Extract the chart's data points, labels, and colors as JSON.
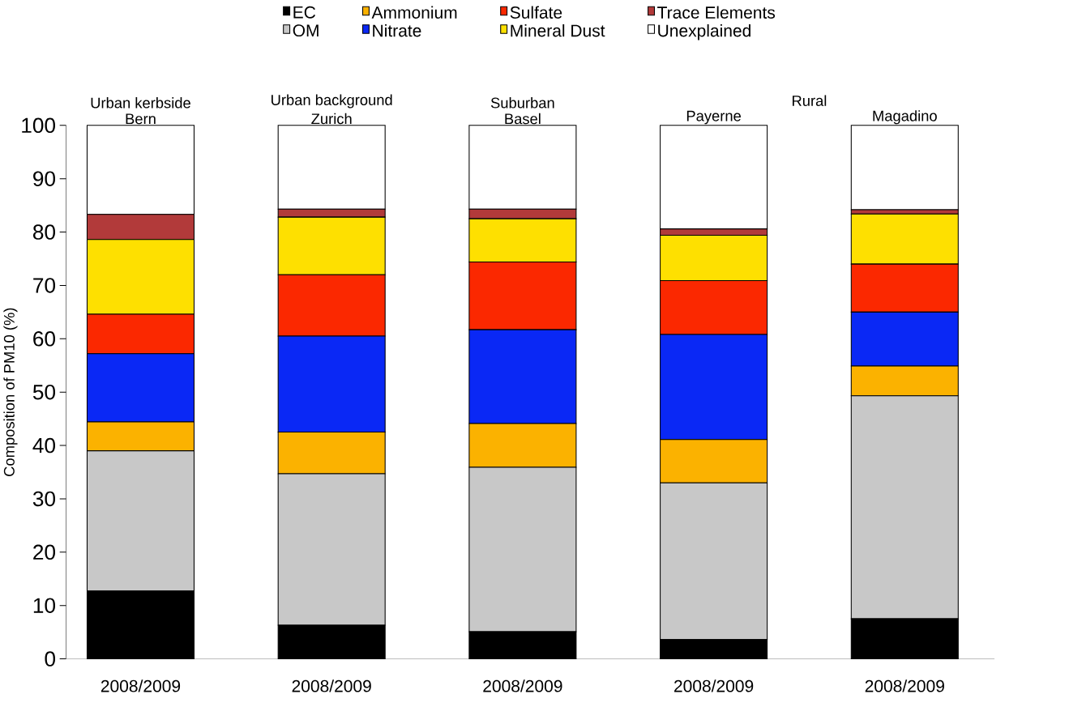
{
  "chart_data": {
    "type": "bar",
    "stacked": true,
    "ylabel": "Composition of PM10 (%)",
    "categories": [
      "Bern",
      "Zurich",
      "Basel",
      "Payerne",
      "Magadino"
    ],
    "series": [
      {
        "name": "EC",
        "color": "#000000",
        "values": [
          12.7,
          6.3,
          5.1,
          3.6,
          7.5
        ]
      },
      {
        "name": "OM",
        "color": "#c8c8c8",
        "values": [
          26.3,
          28.4,
          30.8,
          29.4,
          41.8
        ]
      },
      {
        "name": "Ammonium",
        "color": "#fbb200",
        "values": [
          5.4,
          7.8,
          8.2,
          8.1,
          5.6
        ]
      },
      {
        "name": "Nitrate",
        "color": "#0a28f5",
        "values": [
          12.8,
          18.0,
          17.6,
          19.7,
          10.1
        ]
      },
      {
        "name": "Sulfate",
        "color": "#fb2800",
        "values": [
          7.4,
          11.5,
          12.7,
          10.1,
          9.0
        ]
      },
      {
        "name": "Mineral Dust",
        "color": "#fee000",
        "values": [
          14.0,
          10.8,
          8.1,
          8.5,
          9.4
        ]
      },
      {
        "name": "Trace Elements",
        "color": "#b23a3a",
        "values": [
          4.7,
          1.5,
          1.8,
          1.2,
          0.8
        ]
      },
      {
        "name": "Unexplained",
        "color": "#ffffff",
        "values": [
          16.7,
          15.7,
          15.7,
          19.4,
          15.8
        ]
      }
    ],
    "ylim": [
      0,
      100
    ],
    "yticks": [
      0,
      10,
      20,
      30,
      40,
      50,
      60,
      70,
      80,
      90,
      100
    ],
    "legend": "top",
    "grid": false,
    "annotations": [
      "Urban kerbside",
      "Urban background",
      "Suburban",
      "Rural",
      {
        "text": "2008/2009",
        "x": "Bern",
        "y": 0
      },
      {
        "text": "2008/2009",
        "x": "Zurich",
        "y": 0
      },
      {
        "text": "2008/2009",
        "x": "Basel",
        "y": 0
      },
      {
        "text": "2008/2009",
        "x": "Payerne",
        "y": 0
      },
      {
        "text": "2008/2009",
        "x": "Magadino",
        "y": 0
      }
    ]
  }
}
